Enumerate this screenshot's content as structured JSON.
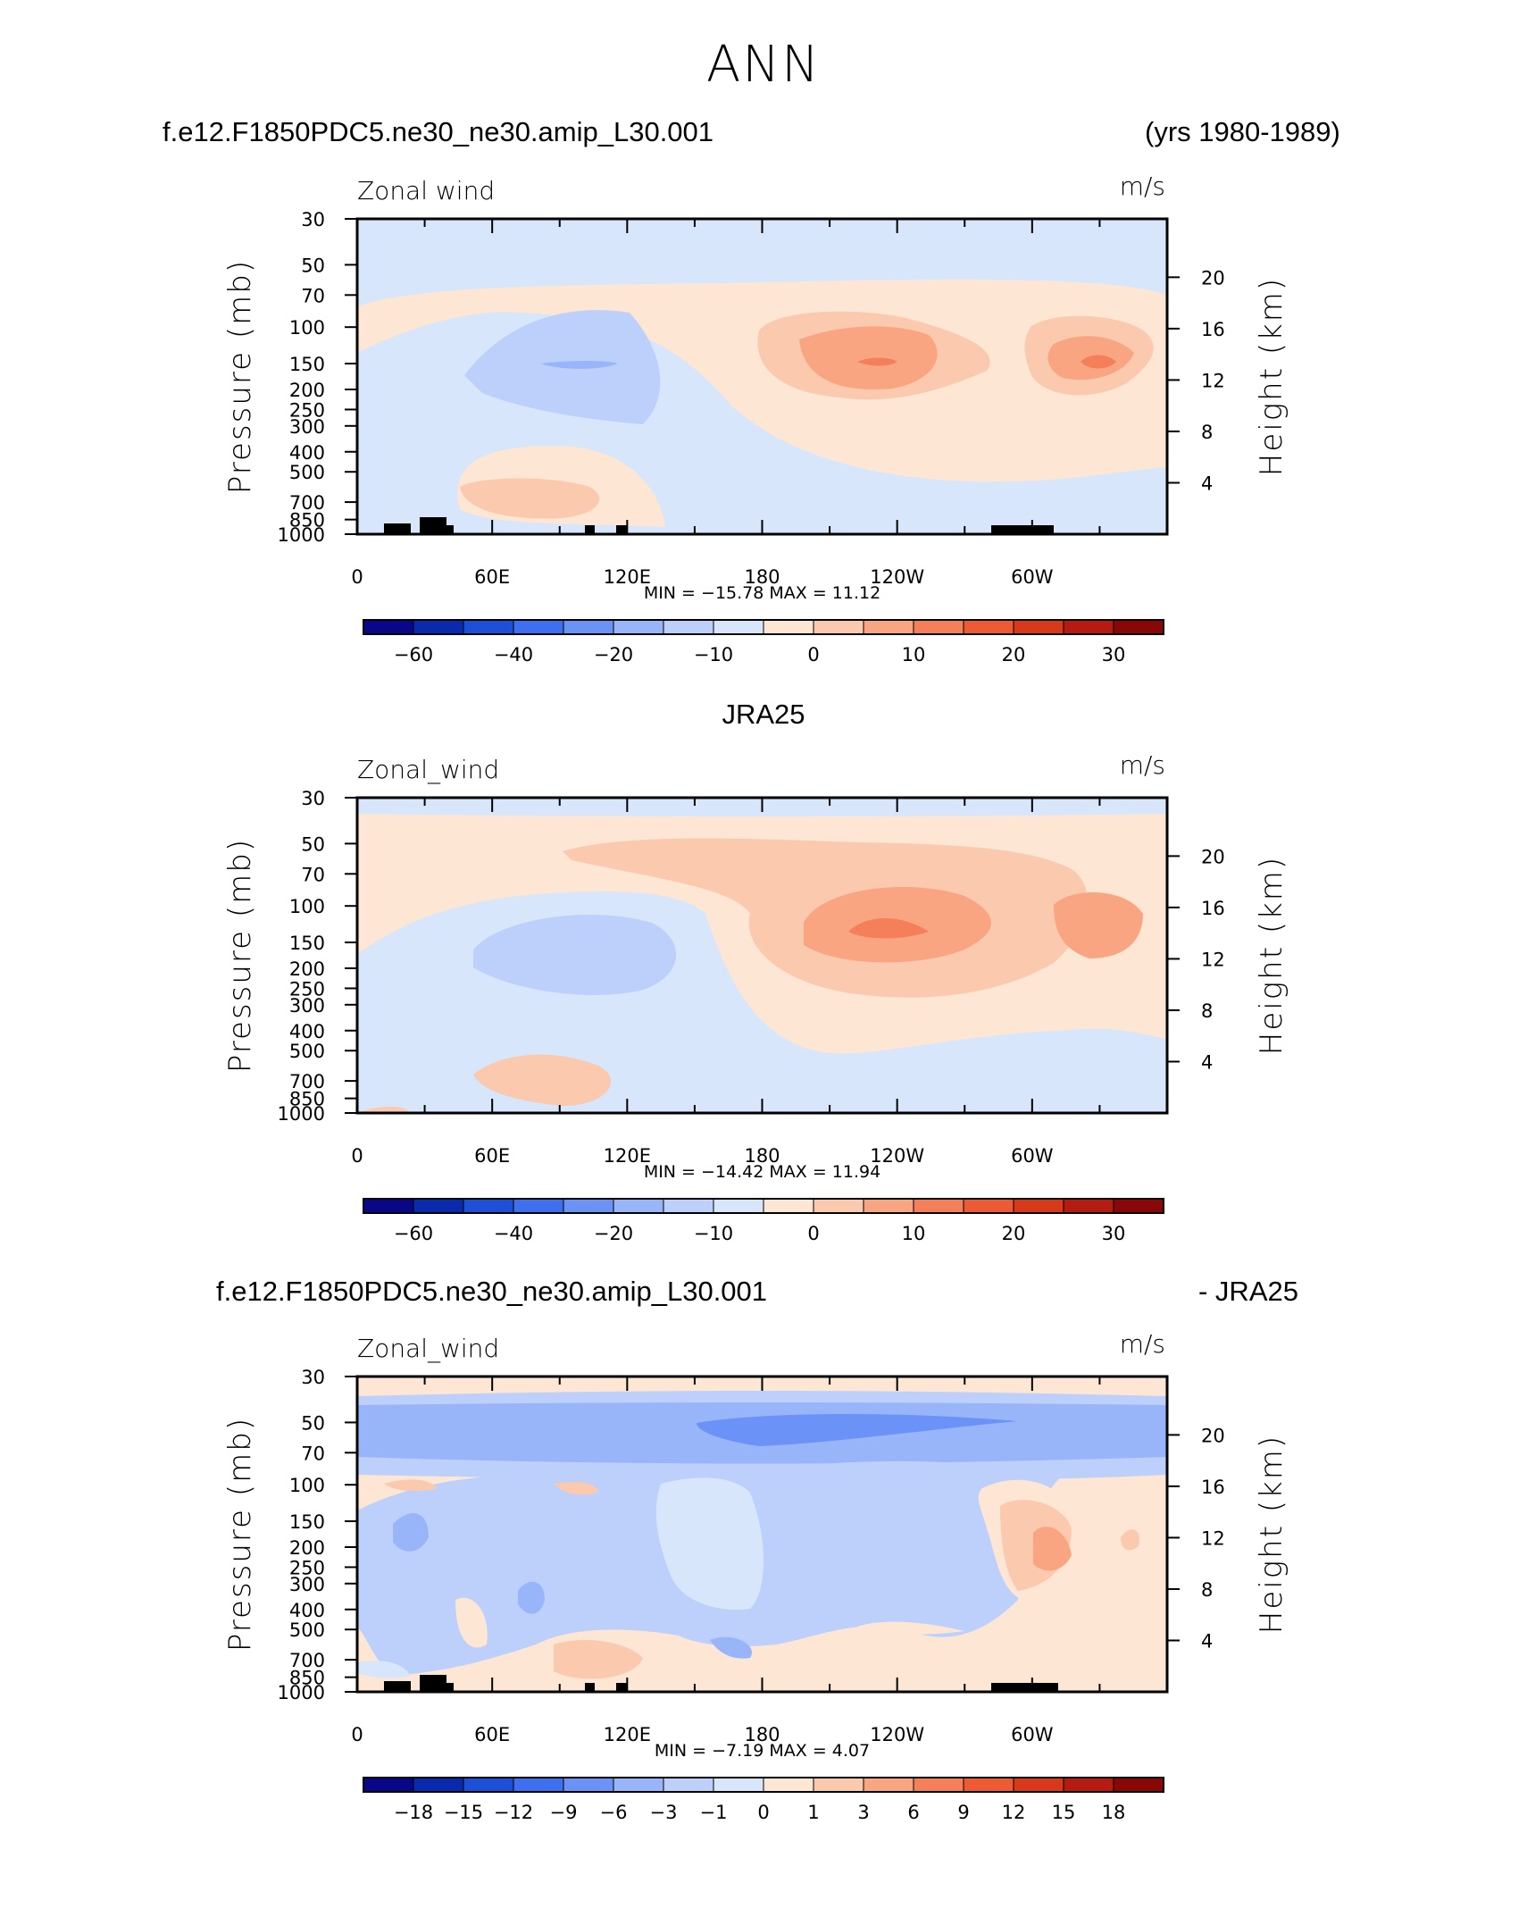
{
  "page_title": "ANN",
  "chart_data": [
    {
      "type": "heatmap",
      "kind": "contour",
      "left_title": "f.e12.F1850PDC5.ne30_ne30.amip_L30.001",
      "right_title": "(yrs 1980-1989)",
      "variable_label": "Zonal wind",
      "units": "m/s",
      "ylabel": "Pressure (mb)",
      "y2label": "Height (km)",
      "x_ticks": [
        "0",
        "60E",
        "120E",
        "180",
        "120W",
        "60W"
      ],
      "x_tick_values": [
        0,
        60,
        120,
        180,
        240,
        300
      ],
      "xlim": [
        0,
        360
      ],
      "y_ticks": [
        "30",
        "50",
        "70",
        "100",
        "150",
        "200",
        "250",
        "300",
        "400",
        "500",
        "700",
        "850",
        "1000"
      ],
      "y_tick_values": [
        30,
        50,
        70,
        100,
        150,
        200,
        250,
        300,
        400,
        500,
        700,
        850,
        1000
      ],
      "ylim": [
        1000,
        30
      ],
      "y2_ticks": [
        "4",
        "8",
        "12",
        "16",
        "20"
      ],
      "y2_tick_values": [
        4,
        8,
        12,
        16,
        20
      ],
      "min_max": "MIN = −15.78   MAX =   11.12",
      "min": -15.78,
      "max": 11.12,
      "colorbar_labels": [
        "−60",
        "−40",
        "−20",
        "−10",
        "0",
        "10",
        "20",
        "30"
      ],
      "colorbar_label_index": [
        1,
        3,
        5,
        7,
        9,
        11,
        13,
        15
      ],
      "colorbar_colors": [
        "#08078a",
        "#0a2aad",
        "#1d4fd8",
        "#3d6ff0",
        "#6b93f7",
        "#99b5fa",
        "#bcd0fb",
        "#d7e6fb",
        "#fde6d4",
        "#fbc9ae",
        "#f9a582",
        "#f57f58",
        "#ee5a33",
        "#d9391b",
        "#b51b10",
        "#8a0707"
      ]
    },
    {
      "type": "heatmap",
      "kind": "contour",
      "center_title": "JRA25",
      "variable_label": "Zonal_wind",
      "units": "m/s",
      "ylabel": "Pressure (mb)",
      "y2label": "Height (km)",
      "x_ticks": [
        "0",
        "60E",
        "120E",
        "180",
        "120W",
        "60W"
      ],
      "x_tick_values": [
        0,
        60,
        120,
        180,
        240,
        300
      ],
      "xlim": [
        0,
        360
      ],
      "y_ticks": [
        "30",
        "50",
        "70",
        "100",
        "150",
        "200",
        "250",
        "300",
        "400",
        "500",
        "700",
        "850",
        "1000"
      ],
      "y_tick_values": [
        30,
        50,
        70,
        100,
        150,
        200,
        250,
        300,
        400,
        500,
        700,
        850,
        1000
      ],
      "ylim": [
        1000,
        30
      ],
      "y2_ticks": [
        "4",
        "8",
        "12",
        "16",
        "20"
      ],
      "y2_tick_values": [
        4,
        8,
        12,
        16,
        20
      ],
      "min_max": "MIN = −14.42   MAX =   11.94",
      "min": -14.42,
      "max": 11.94,
      "colorbar_labels": [
        "−60",
        "−40",
        "−20",
        "−10",
        "0",
        "10",
        "20",
        "30"
      ],
      "colorbar_label_index": [
        1,
        3,
        5,
        7,
        9,
        11,
        13,
        15
      ],
      "colorbar_colors": [
        "#08078a",
        "#0a2aad",
        "#1d4fd8",
        "#3d6ff0",
        "#6b93f7",
        "#99b5fa",
        "#bcd0fb",
        "#d7e6fb",
        "#fde6d4",
        "#fbc9ae",
        "#f9a582",
        "#f57f58",
        "#ee5a33",
        "#d9391b",
        "#b51b10",
        "#8a0707"
      ]
    },
    {
      "type": "heatmap",
      "kind": "contour",
      "left_title": "f.e12.F1850PDC5.ne30_ne30.amip_L30.001",
      "right_title": "- JRA25",
      "variable_label": "Zonal_wind",
      "units": "m/s",
      "ylabel": "Pressure (mb)",
      "y2label": "Height (km)",
      "x_ticks": [
        "0",
        "60E",
        "120E",
        "180",
        "120W",
        "60W"
      ],
      "x_tick_values": [
        0,
        60,
        120,
        180,
        240,
        300
      ],
      "xlim": [
        0,
        360
      ],
      "y_ticks": [
        "30",
        "50",
        "70",
        "100",
        "150",
        "200",
        "250",
        "300",
        "400",
        "500",
        "700",
        "850",
        "1000"
      ],
      "y_tick_values": [
        30,
        50,
        70,
        100,
        150,
        200,
        250,
        300,
        400,
        500,
        700,
        850,
        1000
      ],
      "ylim": [
        1000,
        30
      ],
      "y2_ticks": [
        "4",
        "8",
        "12",
        "16",
        "20"
      ],
      "y2_tick_values": [
        4,
        8,
        12,
        16,
        20
      ],
      "min_max": "MIN =    −7.19   MAX =      4.07",
      "min": -7.19,
      "max": 4.07,
      "colorbar_labels": [
        "−18",
        "−15",
        "−12",
        "−9",
        "−6",
        "−3",
        "−1",
        "0",
        "1",
        "3",
        "6",
        "9",
        "12",
        "15",
        "18"
      ],
      "colorbar_label_index": [
        1,
        2,
        3,
        4,
        5,
        6,
        7,
        8,
        9,
        10,
        11,
        12,
        13,
        14,
        15
      ],
      "colorbar_colors": [
        "#08078a",
        "#0a2aad",
        "#1d4fd8",
        "#3d6ff0",
        "#6b93f7",
        "#99b5fa",
        "#bcd0fb",
        "#d7e6fb",
        "#fde6d4",
        "#fbc9ae",
        "#f9a582",
        "#f57f58",
        "#ee5a33",
        "#d9391b",
        "#b51b10",
        "#8a0707"
      ]
    }
  ]
}
